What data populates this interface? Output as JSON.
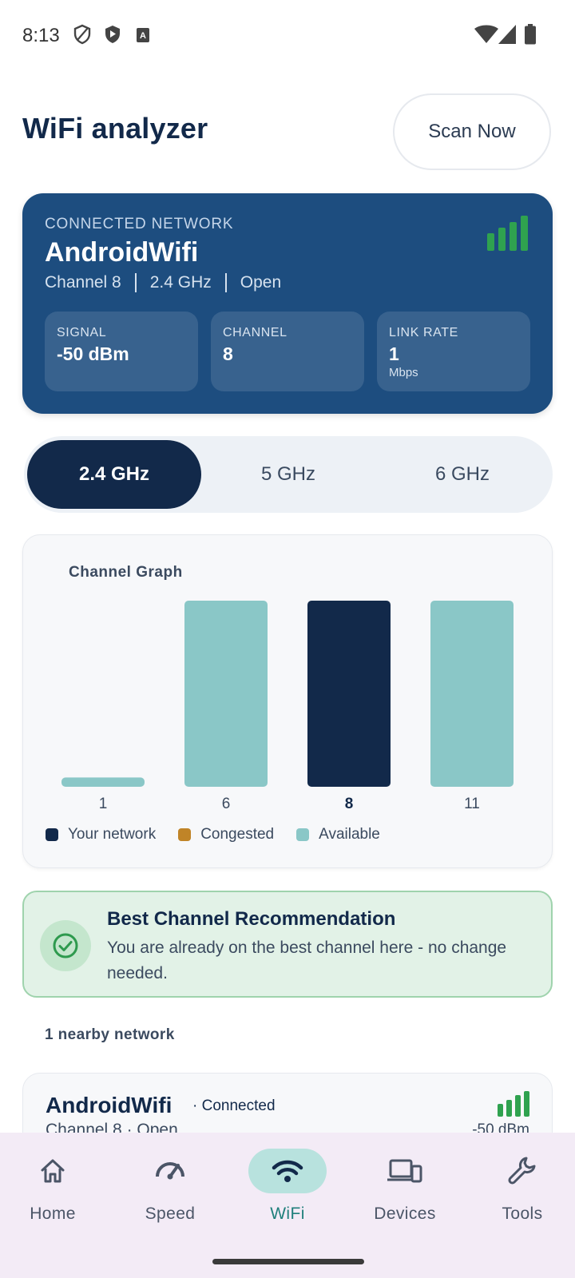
{
  "status_bar": {
    "time": "8:13",
    "icons": [
      "shield-outline-icon",
      "shield-play-icon",
      "translate-icon",
      "wifi-icon",
      "cell-signal-icon",
      "battery-icon"
    ]
  },
  "header": {
    "title": "WiFi analyzer",
    "scan_button": "Scan Now"
  },
  "connected": {
    "label": "CONNECTED NETWORK",
    "name": "AndroidWifi",
    "meta": [
      "Channel 8",
      "2.4 GHz",
      "Open"
    ],
    "signal_bars_level": 4,
    "stats": [
      {
        "label": "SIGNAL",
        "value": "-50 dBm",
        "unit": ""
      },
      {
        "label": "CHANNEL",
        "value": "8",
        "unit": ""
      },
      {
        "label": "LINK RATE",
        "value": "1",
        "unit": "Mbps"
      }
    ]
  },
  "bands": {
    "options": [
      "2.4 GHz",
      "5 GHz",
      "6 GHz"
    ],
    "selected": "2.4 GHz"
  },
  "channel_graph": {
    "title": "Channel Graph",
    "legend": [
      {
        "label": "Your network",
        "color": "#12294a"
      },
      {
        "label": "Congested",
        "color": "#c08427"
      },
      {
        "label": "Available",
        "color": "#8ac7c7"
      }
    ]
  },
  "chart_data": {
    "type": "bar",
    "title": "Channel Graph",
    "categories": [
      "1",
      "6",
      "8",
      "11"
    ],
    "values": [
      0.05,
      1.0,
      1.0,
      1.0
    ],
    "highlighted": "8",
    "colors": {
      "your_network": "#12294a",
      "available": "#8ac7c7"
    }
  },
  "recommendation": {
    "title": "Best Channel Recommendation",
    "body": "You are already on the best channel here - no change needed."
  },
  "nearby": {
    "count_label": "1 nearby network",
    "items": [
      {
        "name": "AndroidWifi",
        "badge": "· Connected",
        "meta": "Channel 8  ·  Open",
        "signal": "-50 dBm"
      }
    ]
  },
  "bottom_nav": {
    "items": [
      {
        "label": "Home",
        "icon": "home-icon"
      },
      {
        "label": "Speed",
        "icon": "speedometer-icon"
      },
      {
        "label": "WiFi",
        "icon": "wifi-icon"
      },
      {
        "label": "Devices",
        "icon": "devices-icon"
      },
      {
        "label": "Tools",
        "icon": "wrench-icon"
      }
    ],
    "active": "WiFi"
  },
  "colors": {
    "primary_dark": "#12294a",
    "card_blue": "#1d4d7f",
    "accent_teal": "#8ac7c7",
    "signal_green": "#2fa24f"
  }
}
